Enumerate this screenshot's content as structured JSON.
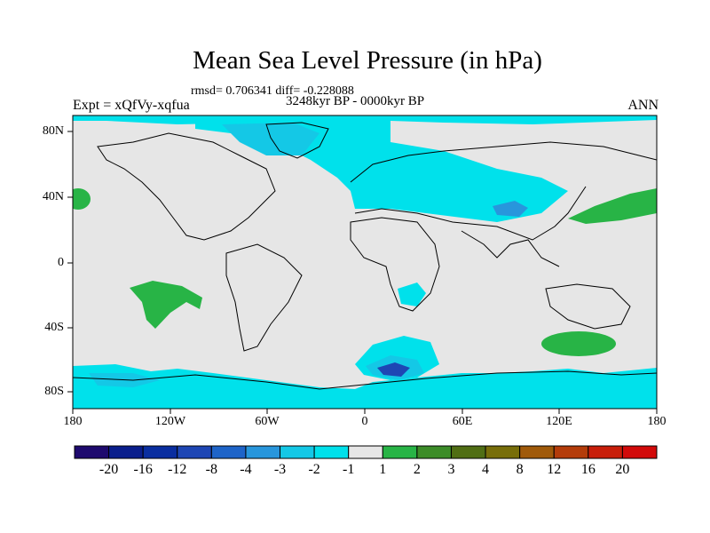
{
  "header": {
    "title": "Mean Sea Level Pressure (in hPa)",
    "stats": "rmsd= 0.706341 diff= -0.228088",
    "period": "3248kyr BP - 0000kyr BP",
    "experiment": "Expt = xQfVy-xqfua",
    "season": "ANN"
  },
  "axes": {
    "y_ticks": [
      "80N",
      "40N",
      "0",
      "40S",
      "80S"
    ],
    "x_ticks": [
      "180",
      "120W",
      "60W",
      "0",
      "60E",
      "120E",
      "180"
    ]
  },
  "colorbar": {
    "labels": [
      "-20",
      "-16",
      "-12",
      "-8",
      "-4",
      "-3",
      "-2",
      "-1",
      "1",
      "2",
      "3",
      "4",
      "8",
      "12",
      "16",
      "20"
    ],
    "colors": [
      "#1e0a6e",
      "#0a1e8c",
      "#0a2ea0",
      "#1e46b4",
      "#1e64c8",
      "#2896dc",
      "#14c8e6",
      "#00e1eb",
      "#e6e6e6",
      "#28b446",
      "#3c8c28",
      "#506e14",
      "#786e0a",
      "#a05a0a",
      "#b43c0a",
      "#c81e0a",
      "#d20a0a"
    ]
  },
  "colors": {
    "background": "#e6e6e6",
    "negative_light": "#00e1eb",
    "negative_mid": "#14c8e6",
    "negative_dark": "#1e46b4",
    "positive_light": "#28b446"
  }
}
